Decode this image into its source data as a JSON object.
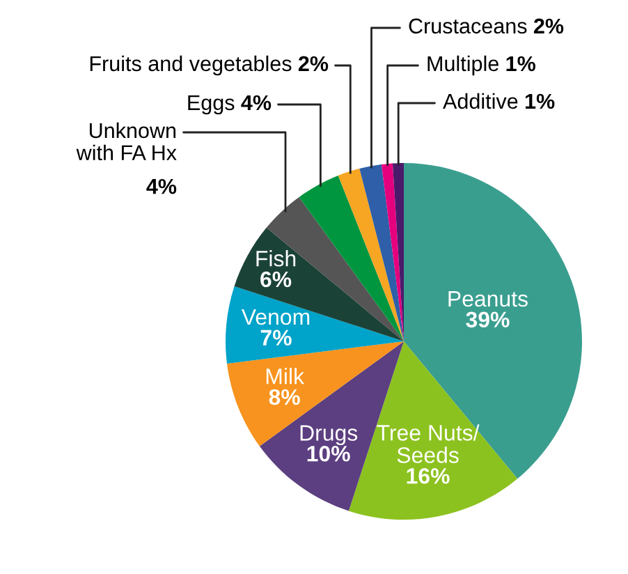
{
  "chart_data": {
    "type": "pie",
    "categories": [
      "Peanuts",
      "Tree Nuts/\nSeeds",
      "Drugs",
      "Milk",
      "Venom",
      "Fish",
      "Unknown\nwith FA Hx",
      "Eggs",
      "Fruits and vegetables",
      "Crustaceans",
      "Multiple",
      "Additive"
    ],
    "values": [
      39,
      16,
      10,
      8,
      7,
      6,
      4,
      4,
      2,
      2,
      1,
      1
    ],
    "value_labels": [
      "39%",
      "16%",
      "10%",
      "8%",
      "7%",
      "6%",
      "4%",
      "4%",
      "2%",
      "2%",
      "1%",
      "1%"
    ],
    "colors": [
      "#3a9e8f",
      "#8cc21f",
      "#5c3f80",
      "#f7931e",
      "#00a3c9",
      "#1b4237",
      "#555555",
      "#00963f",
      "#f6a623",
      "#2e5fa8",
      "#e5007e",
      "#4b1a6b"
    ],
    "legend": false
  }
}
